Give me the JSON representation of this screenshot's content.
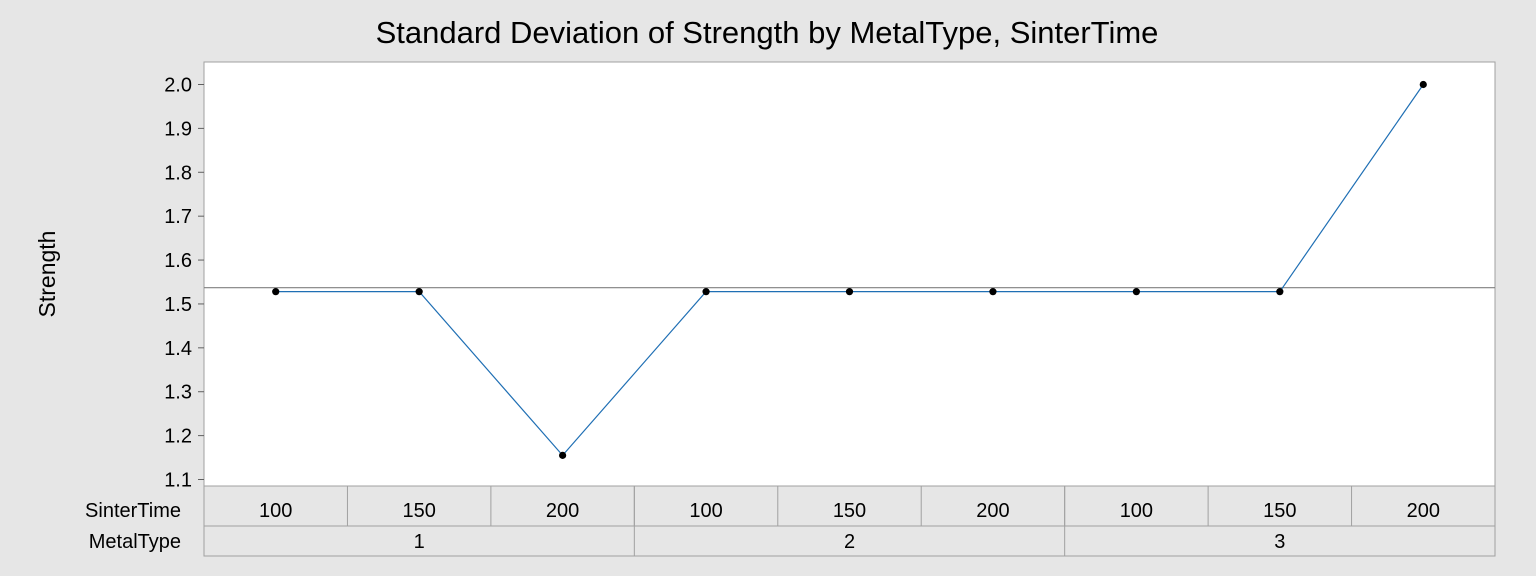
{
  "chart_data": {
    "type": "line",
    "title": "Standard Deviation of Strength by MetalType, SinterTime",
    "ylabel": "Strength",
    "ylim": [
      1.1,
      2.0
    ],
    "yticks": [
      "1.1",
      "1.2",
      "1.3",
      "1.4",
      "1.5",
      "1.6",
      "1.7",
      "1.8",
      "1.9",
      "2.0"
    ],
    "reference_line": 1.537,
    "row_labels": {
      "inner": "SinterTime",
      "outer": "MetalType"
    },
    "categories": [
      {
        "SinterTime": "100",
        "MetalType": "1"
      },
      {
        "SinterTime": "150",
        "MetalType": "1"
      },
      {
        "SinterTime": "200",
        "MetalType": "1"
      },
      {
        "SinterTime": "100",
        "MetalType": "2"
      },
      {
        "SinterTime": "150",
        "MetalType": "2"
      },
      {
        "SinterTime": "200",
        "MetalType": "2"
      },
      {
        "SinterTime": "100",
        "MetalType": "3"
      },
      {
        "SinterTime": "150",
        "MetalType": "3"
      },
      {
        "SinterTime": "200",
        "MetalType": "3"
      }
    ],
    "groups": [
      "1",
      "2",
      "3"
    ],
    "values": [
      1.528,
      1.528,
      1.155,
      1.528,
      1.528,
      1.528,
      1.528,
      1.528,
      2.0
    ],
    "colors": {
      "line": "#1f6fb4",
      "point": "#000000",
      "reference": "#808080",
      "panel": "#e6e6e6",
      "plot": "#ffffff"
    }
  }
}
